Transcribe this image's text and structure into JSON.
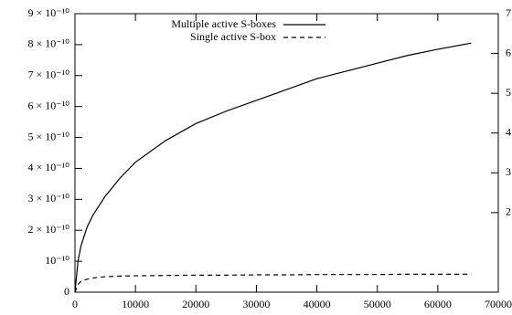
{
  "chart_data": {
    "type": "line",
    "x": [
      0,
      500,
      1000,
      2000,
      3000,
      5000,
      7500,
      10000,
      15000,
      20000,
      25000,
      30000,
      35000,
      40000,
      45000,
      50000,
      55000,
      60000,
      65536
    ],
    "series": [
      {
        "name": "Multiple active S-boxes",
        "color": "#000000",
        "dash": false,
        "values": [
          0,
          1e-10,
          1.5e-10,
          2.1e-10,
          2.5e-10,
          3.1e-10,
          3.7e-10,
          4.2e-10,
          4.9e-10,
          5.45e-10,
          5.85e-10,
          6.2e-10,
          6.55e-10,
          6.9e-10,
          7.15e-10,
          7.4e-10,
          7.65e-10,
          7.85e-10,
          8.05e-10
        ]
      },
      {
        "name": "Single active S-box",
        "color": "#000000",
        "dash": true,
        "values": [
          0,
          2.5e-11,
          3.5e-11,
          4.2e-11,
          4.6e-11,
          5e-11,
          5.2e-11,
          5.3e-11,
          5.4e-11,
          5.5e-11,
          5.5e-11,
          5.6e-11,
          5.6e-11,
          5.7e-11,
          5.7e-11,
          5.7e-11,
          5.8e-11,
          5.8e-11,
          5.8e-11
        ]
      }
    ],
    "xlim": [
      0,
      70000
    ],
    "xticks": [
      0,
      10000,
      20000,
      30000,
      40000,
      50000,
      60000,
      70000
    ],
    "ylim": [
      0,
      9e-10
    ],
    "yticks": [
      0,
      {
        "value": 1e-10,
        "label": "10⁻¹⁰"
      },
      {
        "value": 2e-10,
        "label": "2 × 10⁻¹⁰"
      },
      {
        "value": 3e-10,
        "label": "3 × 10⁻¹⁰"
      },
      {
        "value": 4e-10,
        "label": "4 × 10⁻¹⁰"
      },
      {
        "value": 5e-10,
        "label": "5 × 10⁻¹⁰"
      },
      {
        "value": 6e-10,
        "label": "6 × 10⁻¹⁰"
      },
      {
        "value": 7e-10,
        "label": "7 × 10⁻¹⁰"
      },
      {
        "value": 8e-10,
        "label": "8 × 10⁻¹⁰"
      },
      {
        "value": 9e-10,
        "label": "9 × 10⁻¹⁰"
      }
    ],
    "y2lim": [
      0,
      7
    ],
    "y2ticks": [
      2,
      3,
      4,
      5,
      6,
      7
    ],
    "legend": "top-left",
    "grid": false
  }
}
